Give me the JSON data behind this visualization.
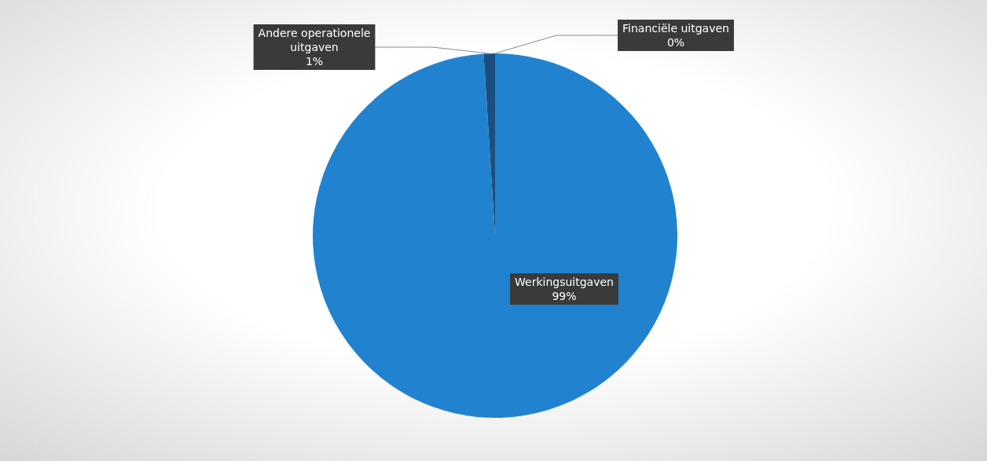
{
  "chart_data": {
    "type": "pie",
    "categories": [
      "Werkingsuitgaven",
      "Andere operationele uitgaven",
      "Financiële uitgaven"
    ],
    "values": [
      99,
      1,
      0
    ],
    "colors": [
      "#2183d0",
      "#1a4f80",
      "#a5a5a5"
    ],
    "value_labels": [
      "99%",
      "1%",
      "0%"
    ],
    "legend": false
  }
}
